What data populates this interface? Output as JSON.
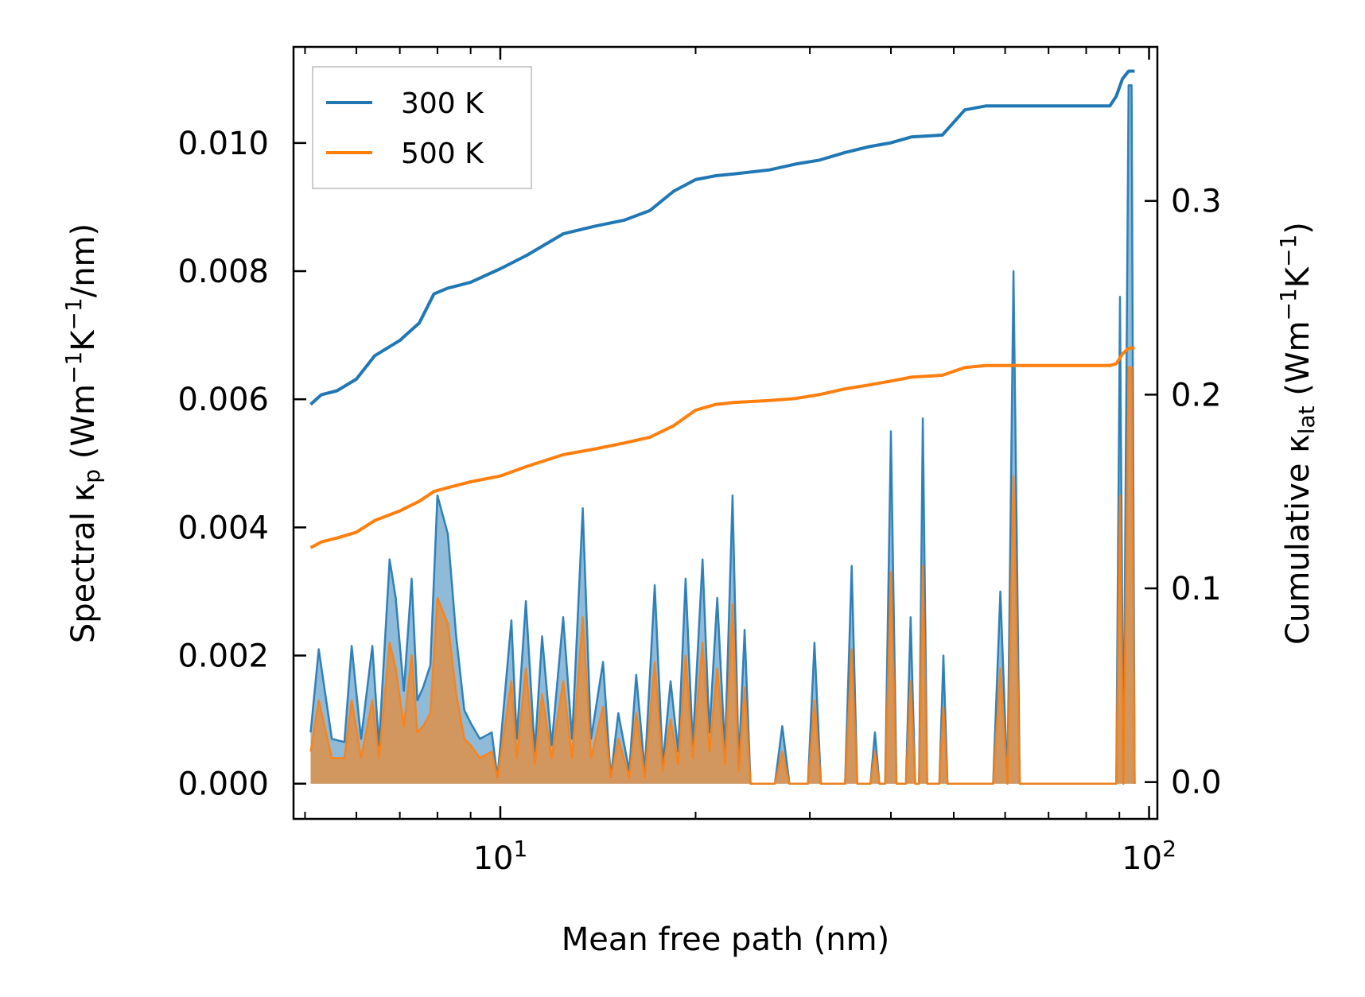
{
  "chart_data": {
    "type": "line",
    "x_scale": "log",
    "xlabel": "Mean free path (nm)",
    "xlim": [
      4.8,
      103
    ],
    "x_ticks": [
      {
        "value": 10,
        "base": "10",
        "exp": "1"
      },
      {
        "value": 100,
        "base": "10",
        "exp": "2"
      }
    ],
    "left_axis": {
      "label_parts": [
        "Spectral κ",
        "p",
        " (Wm",
        "−1",
        "K",
        "−1",
        "/nm)"
      ],
      "ylim": [
        -0.00055,
        0.0115
      ],
      "ticks": [
        0.0,
        0.002,
        0.004,
        0.006,
        0.008,
        0.01
      ],
      "tick_labels": [
        "0.000",
        "0.002",
        "0.004",
        "0.006",
        "0.008",
        "0.010"
      ]
    },
    "right_axis": {
      "label_parts": [
        "Cumulative κ",
        "lat",
        " (Wm",
        "−1",
        "K",
        "−1",
        ")"
      ],
      "ylim": [
        -0.019,
        0.3795
      ],
      "ticks": [
        0.0,
        0.1,
        0.2,
        0.3
      ],
      "tick_labels": [
        "0.0",
        "0.1",
        "0.2",
        "0.3"
      ]
    },
    "legend": {
      "placement": "top-left",
      "entries": [
        "300 K",
        "500 K"
      ]
    },
    "series": [
      {
        "name": "300 K",
        "color": "#1f77b4",
        "cumulative": [
          [
            5.1,
            0.195
          ],
          [
            5.3,
            0.2
          ],
          [
            5.6,
            0.202
          ],
          [
            6.0,
            0.208
          ],
          [
            6.4,
            0.22
          ],
          [
            7.0,
            0.228
          ],
          [
            7.5,
            0.237
          ],
          [
            7.9,
            0.252
          ],
          [
            8.3,
            0.255
          ],
          [
            9.0,
            0.258
          ],
          [
            10.0,
            0.265
          ],
          [
            11.0,
            0.272
          ],
          [
            12.5,
            0.283
          ],
          [
            14.0,
            0.287
          ],
          [
            15.5,
            0.29
          ],
          [
            17.0,
            0.295
          ],
          [
            18.5,
            0.305
          ],
          [
            20.0,
            0.311
          ],
          [
            21.5,
            0.313
          ],
          [
            23.0,
            0.314
          ],
          [
            26.0,
            0.316
          ],
          [
            28.5,
            0.319
          ],
          [
            31.0,
            0.321
          ],
          [
            34.0,
            0.325
          ],
          [
            37.0,
            0.328
          ],
          [
            40.0,
            0.33
          ],
          [
            43.0,
            0.333
          ],
          [
            48.0,
            0.334
          ],
          [
            52.0,
            0.347
          ],
          [
            56.0,
            0.349
          ],
          [
            70.0,
            0.349
          ],
          [
            80.0,
            0.349
          ],
          [
            87.0,
            0.349
          ],
          [
            89.0,
            0.354
          ],
          [
            91.0,
            0.363
          ],
          [
            93.0,
            0.367
          ],
          [
            95.0,
            0.367
          ]
        ],
        "spectral": [
          [
            5.1,
            0.0008
          ],
          [
            5.25,
            0.0021
          ],
          [
            5.5,
            0.0007
          ],
          [
            5.75,
            0.00065
          ],
          [
            5.9,
            0.00215
          ],
          [
            6.1,
            0.0007
          ],
          [
            6.35,
            0.00215
          ],
          [
            6.5,
            0.0006
          ],
          [
            6.75,
            0.0035
          ],
          [
            6.9,
            0.0029
          ],
          [
            7.1,
            0.00145
          ],
          [
            7.3,
            0.0032
          ],
          [
            7.45,
            0.0013
          ],
          [
            7.6,
            0.0015
          ],
          [
            7.8,
            0.00185
          ],
          [
            8.0,
            0.0045
          ],
          [
            8.3,
            0.0039
          ],
          [
            8.55,
            0.0023
          ],
          [
            8.8,
            0.00115
          ],
          [
            9.0,
            0.00095
          ],
          [
            9.3,
            0.0007
          ],
          [
            9.7,
            0.0008
          ],
          [
            9.9,
            0.0001
          ],
          [
            10.4,
            0.00255
          ],
          [
            10.6,
            0.0007
          ],
          [
            10.95,
            0.00285
          ],
          [
            11.3,
            0.0005
          ],
          [
            11.6,
            0.0023
          ],
          [
            12.0,
            0.0006
          ],
          [
            12.5,
            0.0026
          ],
          [
            12.9,
            0.0007
          ],
          [
            13.4,
            0.0043
          ],
          [
            13.8,
            0.0007
          ],
          [
            14.4,
            0.0019
          ],
          [
            14.8,
            0.0001
          ],
          [
            15.2,
            0.0011
          ],
          [
            15.8,
            0.0002
          ],
          [
            16.2,
            0.0017
          ],
          [
            16.7,
            0.0002
          ],
          [
            17.3,
            0.0031
          ],
          [
            17.8,
            0.0003
          ],
          [
            18.3,
            0.0016
          ],
          [
            18.8,
            0.0005
          ],
          [
            19.3,
            0.0032
          ],
          [
            19.8,
            0.0006
          ],
          [
            20.5,
            0.0035
          ],
          [
            21.0,
            0.0008
          ],
          [
            21.6,
            0.0029
          ],
          [
            22.2,
            0.0005
          ],
          [
            22.8,
            0.0045
          ],
          [
            23.3,
            0.0003
          ],
          [
            23.8,
            0.0024
          ],
          [
            24.3,
            0.0
          ],
          [
            26.5,
            0.0
          ],
          [
            27.2,
            0.0009
          ],
          [
            27.9,
            0.0
          ],
          [
            29.8,
            0.0
          ],
          [
            30.5,
            0.0022
          ],
          [
            31.2,
            0.0
          ],
          [
            34.0,
            0.0
          ],
          [
            34.8,
            0.0034
          ],
          [
            35.5,
            0.0
          ],
          [
            37.2,
            0.0
          ],
          [
            37.8,
            0.0008
          ],
          [
            38.4,
            0.0
          ],
          [
            39.2,
            0.0
          ],
          [
            40.0,
            0.0055
          ],
          [
            40.8,
            0.0
          ],
          [
            42.2,
            0.0
          ],
          [
            42.9,
            0.0026
          ],
          [
            43.6,
            0.0
          ],
          [
            44.2,
            0.0
          ],
          [
            44.8,
            0.0057
          ],
          [
            45.5,
            0.0
          ],
          [
            47.5,
            0.0
          ],
          [
            48.2,
            0.002
          ],
          [
            48.9,
            0.0
          ],
          [
            57.5,
            0.0
          ],
          [
            59.0,
            0.003
          ],
          [
            60.5,
            0.0
          ],
          [
            61.8,
            0.008
          ],
          [
            63.2,
            0.0
          ],
          [
            89.0,
            0.0
          ],
          [
            90.2,
            0.0076
          ],
          [
            91.3,
            0.0
          ],
          [
            93.0,
            0.0109
          ],
          [
            94.0,
            0.0109
          ],
          [
            95.0,
            0.0
          ]
        ]
      },
      {
        "name": "500 K",
        "color": "#ff7f0e",
        "cumulative": [
          [
            5.1,
            0.121
          ],
          [
            5.3,
            0.124
          ],
          [
            5.6,
            0.126
          ],
          [
            6.0,
            0.129
          ],
          [
            6.4,
            0.135
          ],
          [
            7.0,
            0.14
          ],
          [
            7.5,
            0.145
          ],
          [
            7.9,
            0.15
          ],
          [
            8.3,
            0.152
          ],
          [
            9.0,
            0.155
          ],
          [
            10.0,
            0.158
          ],
          [
            11.0,
            0.163
          ],
          [
            12.5,
            0.169
          ],
          [
            14.0,
            0.172
          ],
          [
            15.5,
            0.175
          ],
          [
            17.0,
            0.178
          ],
          [
            18.5,
            0.184
          ],
          [
            20.0,
            0.192
          ],
          [
            21.5,
            0.195
          ],
          [
            23.0,
            0.196
          ],
          [
            26.0,
            0.197
          ],
          [
            28.5,
            0.198
          ],
          [
            31.0,
            0.2
          ],
          [
            34.0,
            0.203
          ],
          [
            37.0,
            0.205
          ],
          [
            40.0,
            0.207
          ],
          [
            43.0,
            0.209
          ],
          [
            48.0,
            0.21
          ],
          [
            52.0,
            0.214
          ],
          [
            56.0,
            0.215
          ],
          [
            70.0,
            0.215
          ],
          [
            80.0,
            0.215
          ],
          [
            87.0,
            0.215
          ],
          [
            89.0,
            0.216
          ],
          [
            91.0,
            0.221
          ],
          [
            93.0,
            0.224
          ],
          [
            95.0,
            0.224
          ]
        ],
        "spectral": [
          [
            5.1,
            0.0005
          ],
          [
            5.25,
            0.0013
          ],
          [
            5.5,
            0.0004
          ],
          [
            5.75,
            0.0004
          ],
          [
            5.9,
            0.0013
          ],
          [
            6.1,
            0.0004
          ],
          [
            6.35,
            0.0013
          ],
          [
            6.5,
            0.0004
          ],
          [
            6.75,
            0.0022
          ],
          [
            6.9,
            0.0018
          ],
          [
            7.1,
            0.0009
          ],
          [
            7.3,
            0.002
          ],
          [
            7.45,
            0.0008
          ],
          [
            7.6,
            0.0009
          ],
          [
            7.8,
            0.0011
          ],
          [
            8.0,
            0.0029
          ],
          [
            8.3,
            0.0025
          ],
          [
            8.55,
            0.0014
          ],
          [
            8.8,
            0.0007
          ],
          [
            9.0,
            0.0006
          ],
          [
            9.3,
            0.0004
          ],
          [
            9.7,
            0.0005
          ],
          [
            9.9,
            0.0001
          ],
          [
            10.4,
            0.0016
          ],
          [
            10.6,
            0.0004
          ],
          [
            10.95,
            0.0018
          ],
          [
            11.3,
            0.0003
          ],
          [
            11.6,
            0.0014
          ],
          [
            12.0,
            0.0004
          ],
          [
            12.5,
            0.0016
          ],
          [
            12.9,
            0.0004
          ],
          [
            13.4,
            0.0026
          ],
          [
            13.8,
            0.0004
          ],
          [
            14.4,
            0.0012
          ],
          [
            14.8,
            0.0001
          ],
          [
            15.2,
            0.0007
          ],
          [
            15.8,
            0.0001
          ],
          [
            16.2,
            0.0011
          ],
          [
            16.7,
            0.0001
          ],
          [
            17.3,
            0.0019
          ],
          [
            17.8,
            0.0002
          ],
          [
            18.3,
            0.001
          ],
          [
            18.8,
            0.0003
          ],
          [
            19.3,
            0.002
          ],
          [
            19.8,
            0.0004
          ],
          [
            20.5,
            0.0022
          ],
          [
            21.0,
            0.0005
          ],
          [
            21.6,
            0.0018
          ],
          [
            22.2,
            0.0003
          ],
          [
            22.8,
            0.0028
          ],
          [
            23.3,
            0.0002
          ],
          [
            23.8,
            0.0015
          ],
          [
            24.3,
            0.0
          ],
          [
            26.5,
            0.0
          ],
          [
            27.2,
            0.0005
          ],
          [
            27.9,
            0.0
          ],
          [
            29.8,
            0.0
          ],
          [
            30.5,
            0.0013
          ],
          [
            31.2,
            0.0
          ],
          [
            34.0,
            0.0
          ],
          [
            34.8,
            0.0021
          ],
          [
            35.5,
            0.0
          ],
          [
            37.2,
            0.0
          ],
          [
            37.8,
            0.0005
          ],
          [
            38.4,
            0.0
          ],
          [
            39.2,
            0.0
          ],
          [
            40.0,
            0.0033
          ],
          [
            40.8,
            0.0
          ],
          [
            42.2,
            0.0
          ],
          [
            42.9,
            0.0016
          ],
          [
            43.6,
            0.0
          ],
          [
            44.2,
            0.0
          ],
          [
            44.8,
            0.0034
          ],
          [
            45.5,
            0.0
          ],
          [
            47.5,
            0.0
          ],
          [
            48.2,
            0.0012
          ],
          [
            48.9,
            0.0
          ],
          [
            57.5,
            0.0
          ],
          [
            59.0,
            0.0018
          ],
          [
            60.5,
            0.0
          ],
          [
            61.8,
            0.0048
          ],
          [
            63.2,
            0.0
          ],
          [
            89.0,
            0.0
          ],
          [
            90.2,
            0.0045
          ],
          [
            91.3,
            0.0
          ],
          [
            93.0,
            0.0065
          ],
          [
            94.0,
            0.0065
          ],
          [
            95.0,
            0.0
          ]
        ]
      }
    ]
  }
}
